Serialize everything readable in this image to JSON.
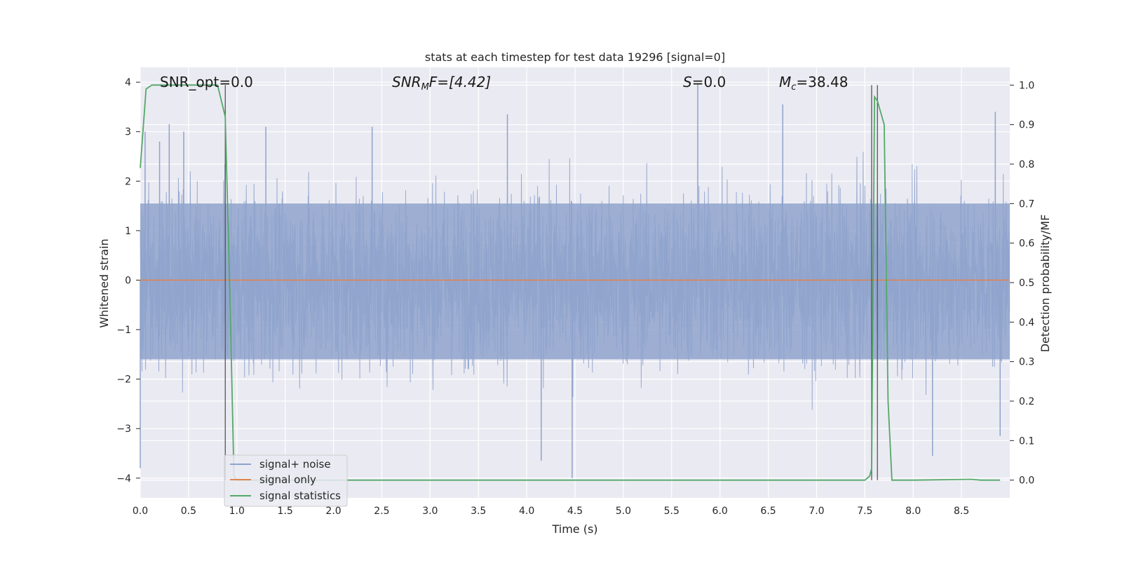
{
  "chart_data": {
    "type": "line",
    "title": "stats at each timestep for test data 19296 [signal=0]",
    "xlabel": "Time (s)",
    "ylabel": "Whitened strain",
    "ylabel_right": "Detection probability/MF",
    "xlim": [
      0.0,
      9.0
    ],
    "ylim": [
      -4.4,
      4.3
    ],
    "ylim_right": [
      -0.045,
      1.045
    ],
    "x_ticks": [
      "0.0",
      "0.5",
      "1.0",
      "1.5",
      "2.0",
      "2.5",
      "3.0",
      "3.5",
      "4.0",
      "4.5",
      "5.0",
      "5.5",
      "6.0",
      "6.5",
      "7.0",
      "7.5",
      "8.0",
      "8.5"
    ],
    "y_ticks": [
      "4",
      "3",
      "2",
      "1",
      "0",
      "−1",
      "−2",
      "−3",
      "−4"
    ],
    "y_ticks_right": [
      "1.0",
      "0.9",
      "0.8",
      "0.7",
      "0.6",
      "0.5",
      "0.4",
      "0.3",
      "0.2",
      "0.1",
      "0.0"
    ],
    "grid": true,
    "legend_position": "lower-left",
    "annotations": {
      "snr_opt": "SNR_opt=0.0",
      "snr_mf_base": "SNR",
      "snr_mf_sub": "M",
      "snr_mf_rest": "F=[4.42]",
      "s_var": "S",
      "s_rest": "=0.0",
      "mc_var": "M",
      "mc_sub": "c",
      "mc_rest": "=38.48"
    },
    "vertical_markers_x": [
      0.88,
      7.57,
      7.63
    ],
    "series": [
      {
        "name": "signal+ noise",
        "color": "#8fa3cc",
        "axis": "left",
        "description": "whitened strain noise, roughly within ±3.3 with spikes to ±4",
        "envelope_peaks": [
          [
            0.0,
            -3.8
          ],
          [
            0.05,
            3.0
          ],
          [
            0.2,
            2.8
          ],
          [
            0.3,
            3.15
          ],
          [
            0.45,
            3.0
          ],
          [
            1.3,
            3.1
          ],
          [
            2.4,
            3.1
          ],
          [
            3.8,
            3.35
          ],
          [
            4.15,
            -3.65
          ],
          [
            4.47,
            -4.0
          ],
          [
            5.77,
            3.95
          ],
          [
            6.65,
            3.55
          ],
          [
            8.2,
            -3.55
          ],
          [
            8.85,
            3.4
          ],
          [
            8.9,
            -3.15
          ]
        ]
      },
      {
        "name": "signal only",
        "color": "#dd8452",
        "axis": "left",
        "x": [
          0.0,
          9.0
        ],
        "y": [
          0.0,
          0.0
        ]
      },
      {
        "name": "signal statistics",
        "color": "#55a868",
        "axis": "right",
        "x": [
          0.0,
          0.06,
          0.12,
          0.5,
          0.8,
          0.88,
          0.93,
          0.97,
          1.0,
          2.0,
          3.0,
          4.0,
          5.0,
          6.0,
          7.0,
          7.5,
          7.55,
          7.57,
          7.6,
          7.63,
          7.7,
          7.74,
          7.78,
          8.0,
          8.3,
          8.6,
          8.7,
          8.9
        ],
        "y": [
          0.79,
          0.99,
          1.0,
          1.0,
          1.0,
          0.92,
          0.45,
          0.01,
          0.0,
          0.0,
          0.0,
          0.0,
          0.0,
          0.0,
          0.0,
          0.0,
          0.01,
          0.03,
          0.97,
          0.96,
          0.9,
          0.2,
          0.0,
          0.0,
          0.001,
          0.002,
          0.0,
          0.0
        ]
      }
    ]
  }
}
